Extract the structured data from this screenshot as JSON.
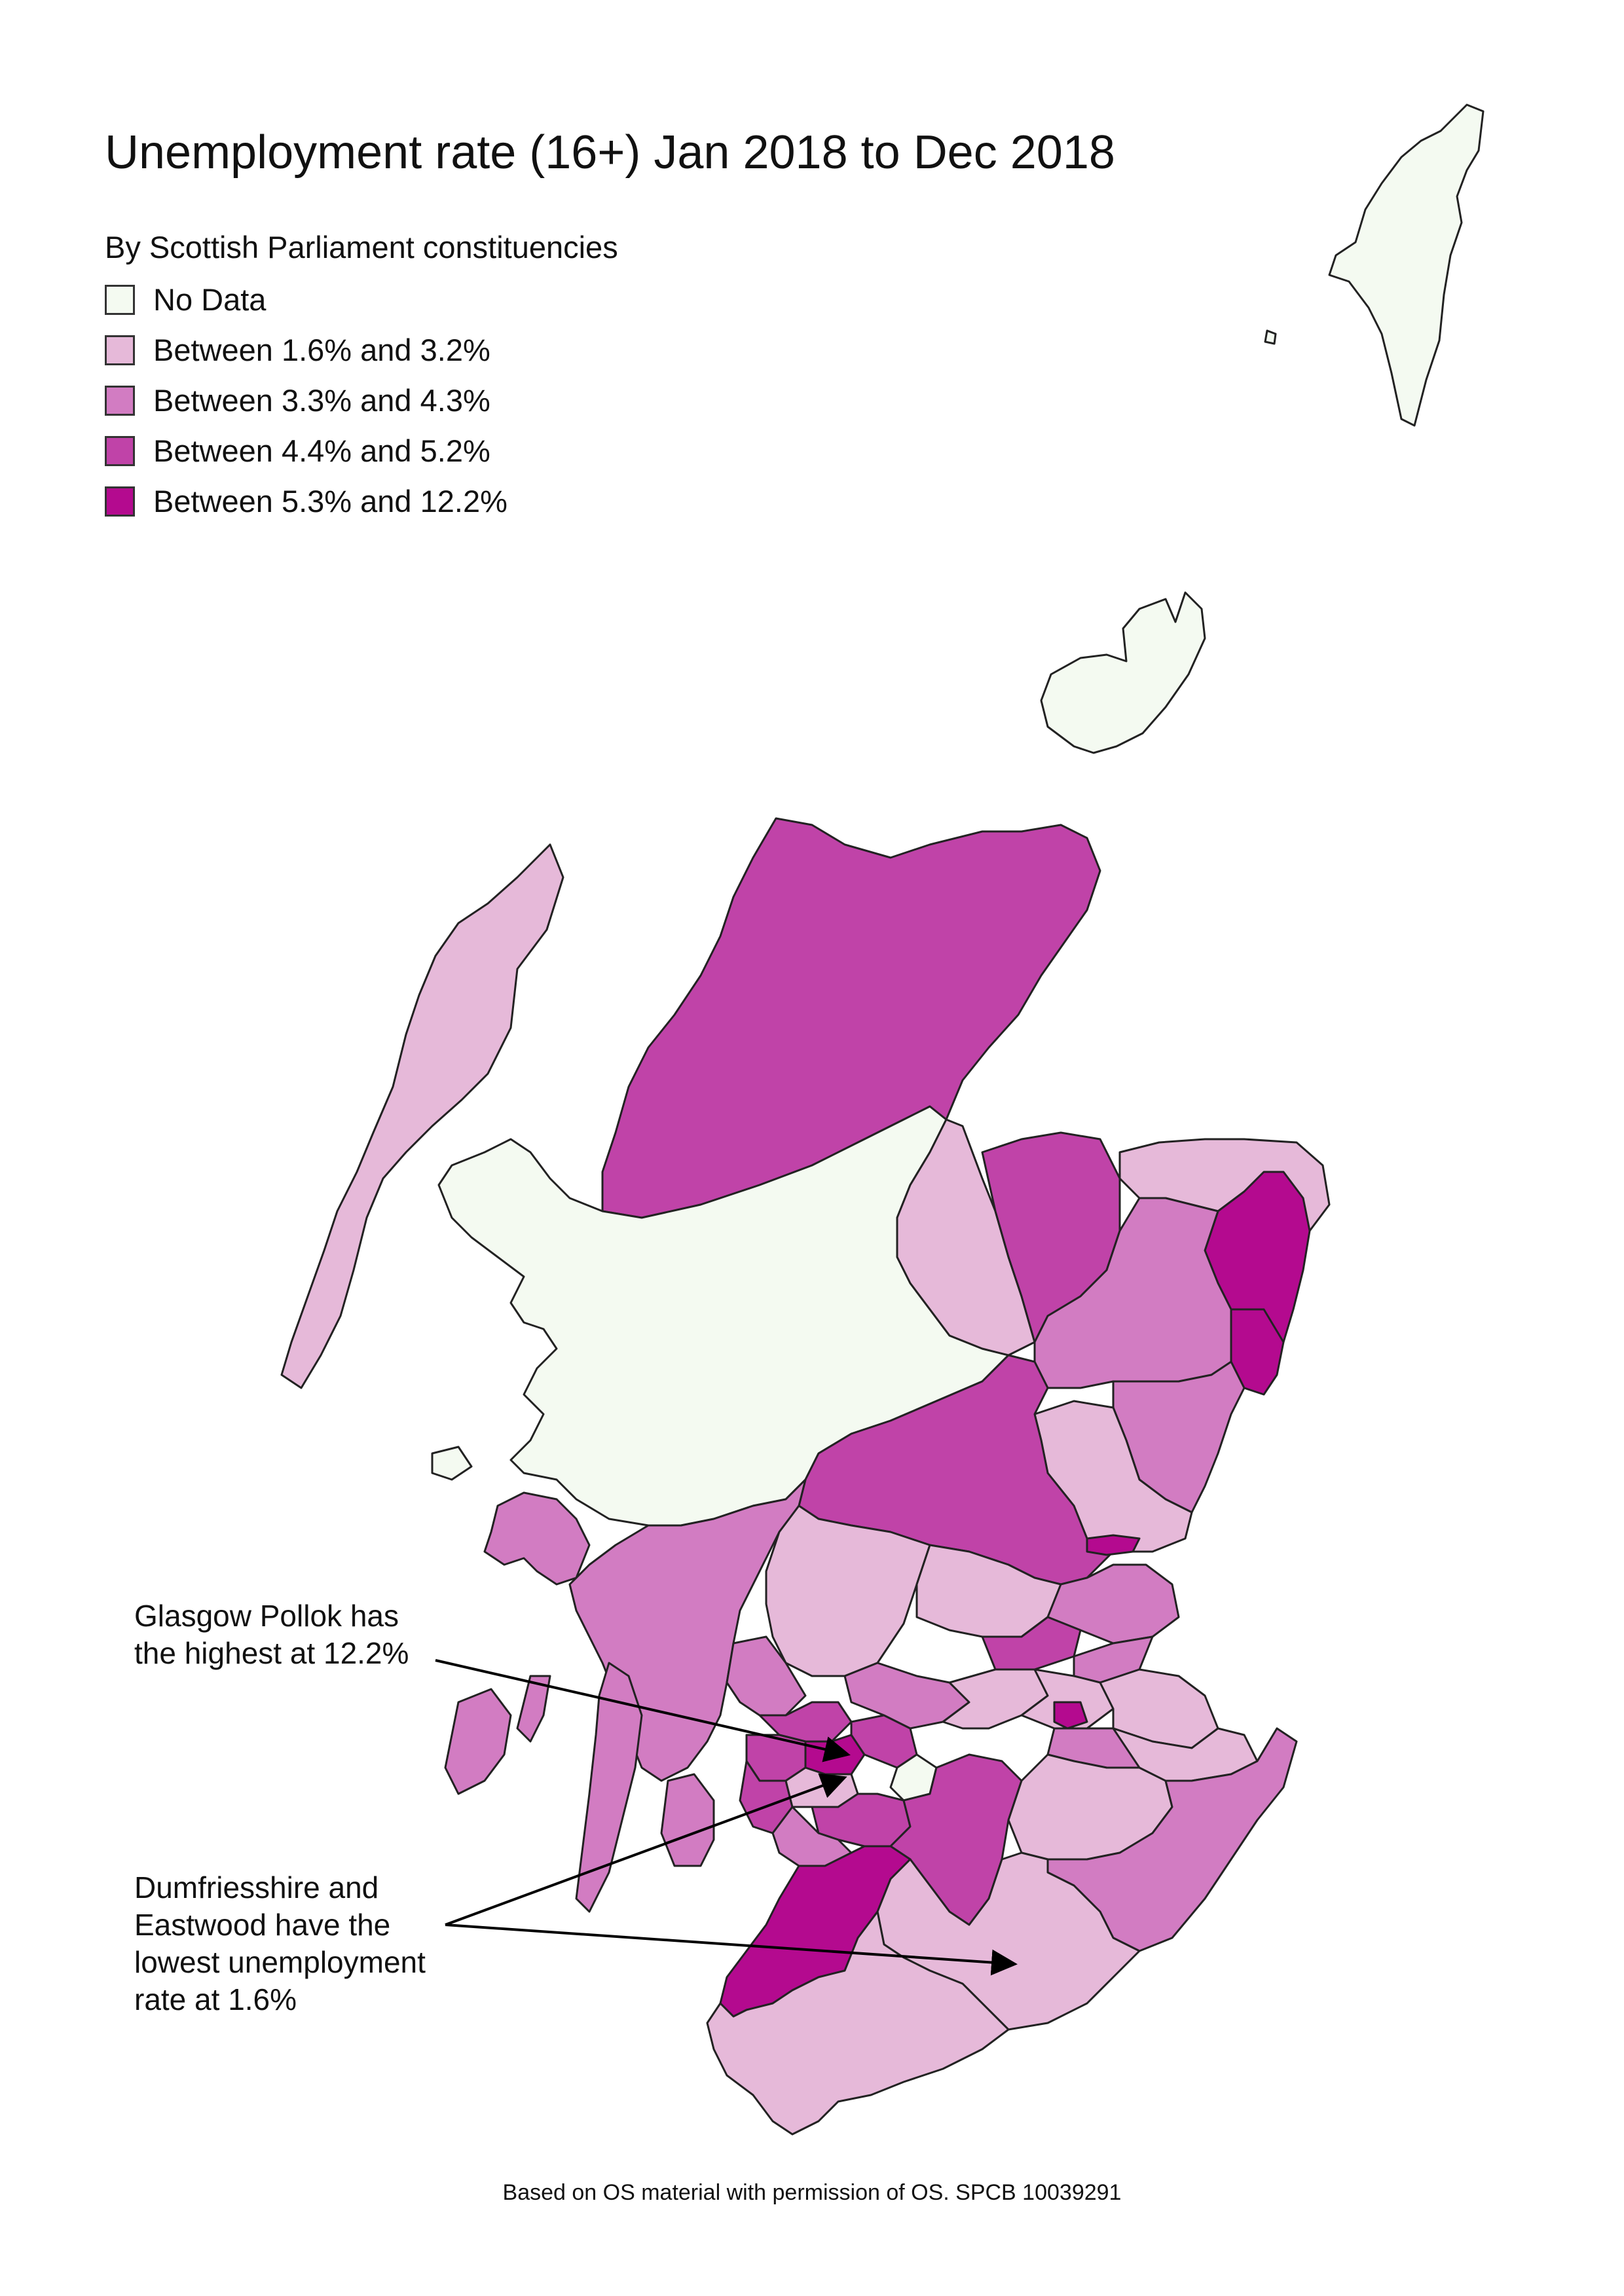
{
  "title": "Unemployment rate (16+) Jan 2018 to Dec 2018",
  "legend": {
    "heading": "By Scottish Parliament constituencies",
    "items": [
      {
        "label": "No Data",
        "color": "#f4faf1"
      },
      {
        "label": "Between 1.6% and 3.2%",
        "color": "#e6b9d9"
      },
      {
        "label": "Between 3.3% and 4.3%",
        "color": "#d27cc2"
      },
      {
        "label": "Between 4.4% and 5.2%",
        "color": "#c043a8"
      },
      {
        "label": "Between 5.3% and 12.2%",
        "color": "#b40a8f"
      }
    ]
  },
  "annotations": {
    "highest": "Glasgow Pollok has\nthe highest at 12.2%",
    "lowest": "Dumfriesshire and\nEastwood have the\nlowest unemployment\nrate at 1.6%"
  },
  "source_note": "Based on OS material with permission of OS. SPCB 10039291"
}
